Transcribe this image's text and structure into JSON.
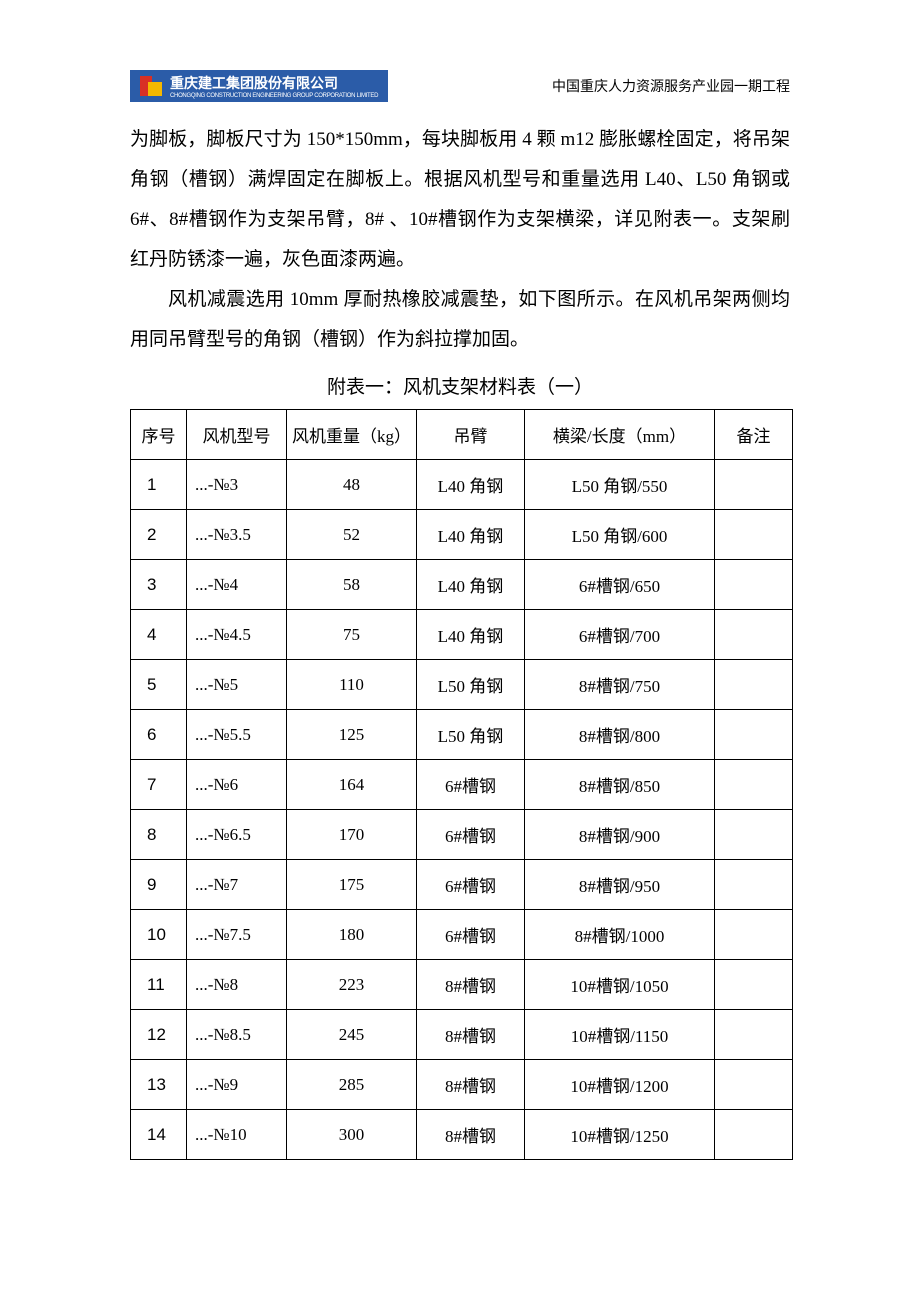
{
  "header": {
    "company_name": "重庆建工集团股份有限公司",
    "company_subtext": "CHONGQING CONSTRUCTION ENGINEERING GROUP CORPORATION LIMITED",
    "project_name": "中国重庆人力资源服务产业园一期工程"
  },
  "body": {
    "para1": "为脚板，脚板尺寸为 150*150mm，每块脚板用 4 颗 m12 膨胀螺栓固定，将吊架角钢（槽钢）满焊固定在脚板上。根据风机型号和重量选用 L40、L50 角钢或 6#、8#槽钢作为支架吊臂，8# 、10#槽钢作为支架横梁，详见附表一。支架刷红丹防锈漆一遍，灰色面漆两遍。",
    "para2": "风机减震选用 10mm 厚耐热橡胶减震垫，如下图所示。在风机吊架两侧均用同吊臂型号的角钢（槽钢）作为斜拉撑加固。",
    "table_title": "附表一：风机支架材料表（一）"
  },
  "table": {
    "columns": [
      "序号",
      "风机型号",
      "风机重量（kg）",
      "吊臂",
      "横梁/长度（mm）",
      "备注"
    ],
    "rows": [
      [
        "1",
        "...-№3",
        "48",
        "L40 角钢",
        "L50 角钢/550",
        ""
      ],
      [
        "2",
        "...-№3.5",
        "52",
        "L40 角钢",
        "L50 角钢/600",
        ""
      ],
      [
        "3",
        "...-№4",
        "58",
        "L40 角钢",
        "6#槽钢/650",
        ""
      ],
      [
        "4",
        "...-№4.5",
        "75",
        "L40 角钢",
        "6#槽钢/700",
        ""
      ],
      [
        "5",
        "...-№5",
        "110",
        "L50 角钢",
        "8#槽钢/750",
        ""
      ],
      [
        "6",
        "...-№5.5",
        "125",
        "L50 角钢",
        "8#槽钢/800",
        ""
      ],
      [
        "7",
        "...-№6",
        "164",
        "6#槽钢",
        "8#槽钢/850",
        ""
      ],
      [
        "8",
        "...-№6.5",
        "170",
        "6#槽钢",
        "8#槽钢/900",
        ""
      ],
      [
        "9",
        "...-№7",
        "175",
        "6#槽钢",
        "8#槽钢/950",
        ""
      ],
      [
        "10",
        "...-№7.5",
        "180",
        "6#槽钢",
        "8#槽钢/1000",
        ""
      ],
      [
        "11",
        "...-№8",
        "223",
        "8#槽钢",
        "10#槽钢/1050",
        ""
      ],
      [
        "12",
        "...-№8.5",
        "245",
        "8#槽钢",
        "10#槽钢/1150",
        ""
      ],
      [
        "13",
        "...-№9",
        "285",
        "8#槽钢",
        "10#槽钢/1200",
        ""
      ],
      [
        "14",
        "...-№10",
        "300",
        "8#槽钢",
        "10#槽钢/1250",
        ""
      ]
    ]
  }
}
